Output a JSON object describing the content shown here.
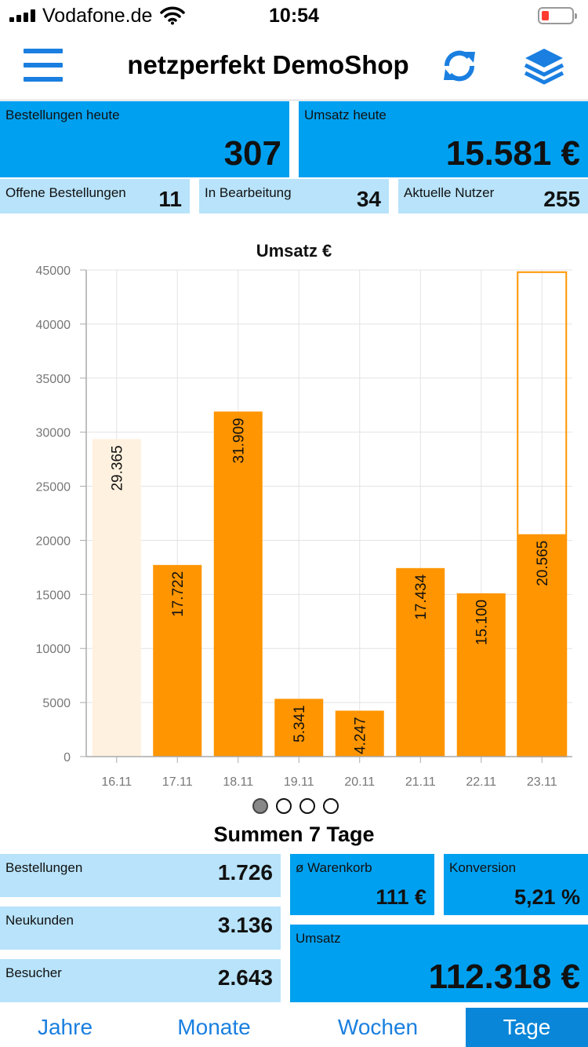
{
  "status_bar": {
    "carrier": "Vodafone.de",
    "time": "10:54"
  },
  "header": {
    "title": "netzperfekt DemoShop"
  },
  "kpis_today": {
    "orders": {
      "label": "Bestellungen heute",
      "value": "307"
    },
    "revenue": {
      "label": "Umsatz heute",
      "value": "15.581 €"
    },
    "open_orders": {
      "label": "Offene Bestellungen",
      "value": "11"
    },
    "in_progress": {
      "label": "In Bearbeitung",
      "value": "34"
    },
    "current_users": {
      "label": "Aktuelle Nutzer",
      "value": "255"
    }
  },
  "chart_data": {
    "type": "bar",
    "title": "Umsatz €",
    "categories": [
      "16.11",
      "17.11",
      "18.11",
      "19.11",
      "20.11",
      "21.11",
      "22.11",
      "23.11"
    ],
    "values": [
      29365,
      17722,
      31909,
      5341,
      4247,
      17434,
      15100,
      20565
    ],
    "value_labels": [
      "29.365",
      "17.722",
      "31.909",
      "5.341",
      "4.247",
      "17.434",
      "15.100",
      "20.565"
    ],
    "target_23_11": 44800,
    "yticks": [
      0,
      5000,
      10000,
      15000,
      20000,
      25000,
      30000,
      35000,
      40000,
      45000
    ],
    "ylim": [
      0,
      45000
    ],
    "grid": true,
    "colors": {
      "bar": "#ff9500",
      "bar_faded": "#fff1df",
      "target_outline": "#ff9500"
    }
  },
  "pager": {
    "pages": 4,
    "active": 0
  },
  "summary": {
    "title": "Summen 7 Tage",
    "orders": {
      "label": "Bestellungen",
      "value": "1.726"
    },
    "new_customers": {
      "label": "Neukunden",
      "value": "3.136"
    },
    "visitors": {
      "label": "Besucher",
      "value": "2.643"
    },
    "avg_basket": {
      "label": "ø Warenkorb",
      "value": "111 €"
    },
    "conversion": {
      "label": "Konversion",
      "value": "5,21 %"
    },
    "revenue": {
      "label": "Umsatz",
      "value": "112.318 €"
    }
  },
  "tabs": [
    {
      "label": "Jahre"
    },
    {
      "label": "Monate"
    },
    {
      "label": "Wochen"
    },
    {
      "label": "Tage",
      "active": true
    }
  ]
}
